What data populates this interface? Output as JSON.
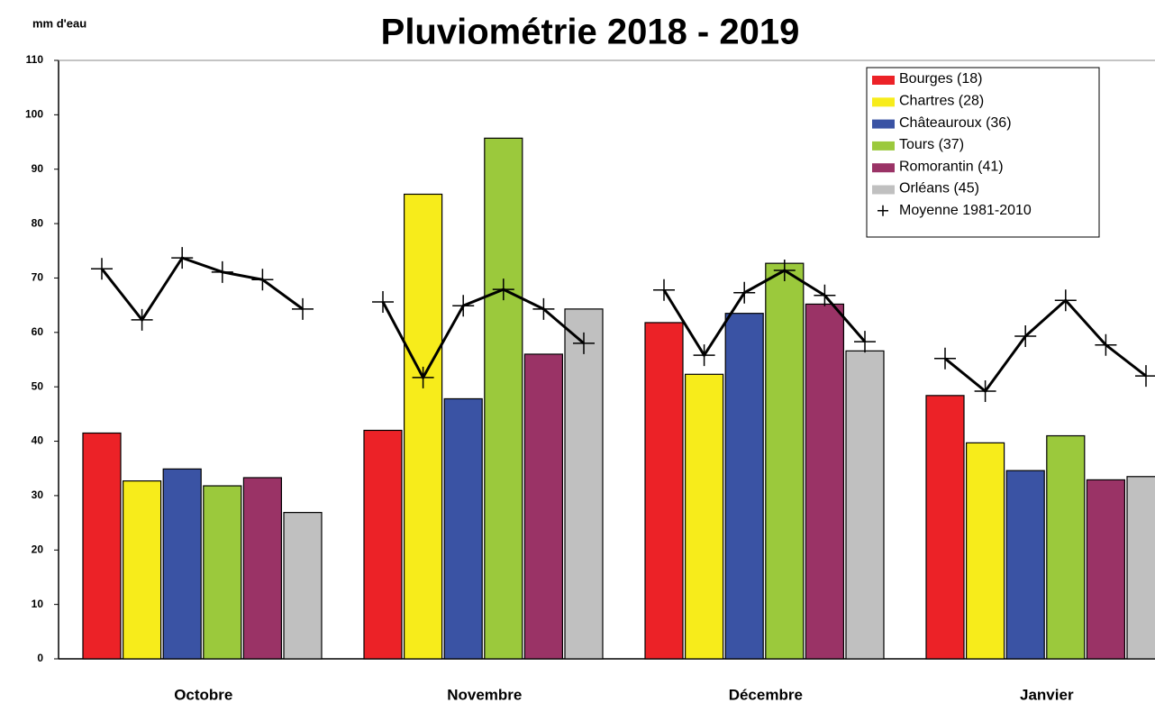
{
  "chart_data": {
    "type": "bar",
    "title": "Pluviométrie 2018 - 2019",
    "y_label": "mm d'eau",
    "categories": [
      "Octobre",
      "Novembre",
      "Décembre",
      "Janvier"
    ],
    "series": [
      {
        "name": "Bourges (18)",
        "color": "#ec2227",
        "values": [
          41.5,
          42,
          61.8,
          48.4
        ]
      },
      {
        "name": "Chartres (28)",
        "color": "#f7ec1b",
        "values": [
          32.7,
          85.4,
          52.3,
          39.7
        ]
      },
      {
        "name": "Châteauroux (36)",
        "color": "#3a53a4",
        "values": [
          34.9,
          47.8,
          63.5,
          34.6
        ]
      },
      {
        "name": "Tours (37)",
        "color": "#9bc93c",
        "values": [
          31.8,
          95.7,
          72.7,
          41
        ]
      },
      {
        "name": "Romorantin (41)",
        "color": "#9a3366",
        "values": [
          33.3,
          56,
          65.2,
          32.9
        ]
      },
      {
        "name": "Orléans  (45)",
        "color": "#c0c0c0",
        "values": [
          26.9,
          64.3,
          56.6,
          33.5
        ]
      }
    ],
    "average": {
      "type": "line",
      "name": "Moyenne 1981-2010",
      "marker": "+",
      "color": "#000000",
      "values": [
        [
          71.7,
          62.3,
          73.7,
          71.1,
          69.7,
          64.3
        ],
        [
          65.6,
          51.7,
          64.9,
          67.9,
          64.3,
          58
        ],
        [
          67.8,
          55.8,
          67.3,
          71.4,
          66.8,
          58.3
        ],
        [
          55.2,
          49.2,
          59.3,
          65.9,
          57.7,
          52
        ]
      ]
    },
    "ylim": [
      0,
      110
    ],
    "yticks": [
      0,
      10,
      20,
      30,
      40,
      50,
      60,
      70,
      80,
      90,
      100,
      110
    ],
    "grid": false,
    "legend": "upper right"
  }
}
